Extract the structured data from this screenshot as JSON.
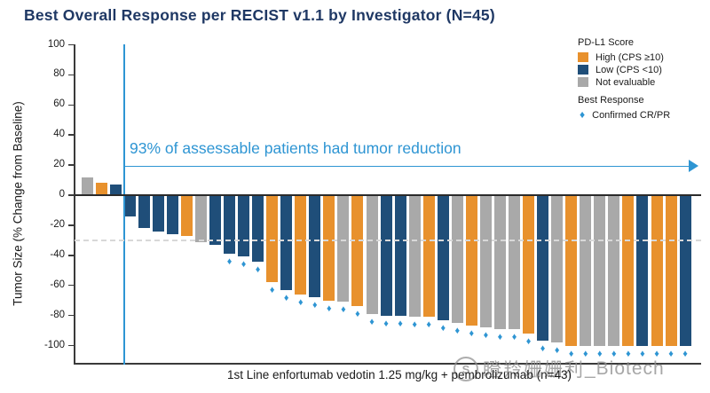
{
  "title": "Best Overall Response per RECIST v1.1 by Investigator (N=45)",
  "colors": {
    "title_navy": "#1F3864",
    "orange": "#E8912D",
    "navy": "#1F4E79",
    "gray": "#A9A9A9",
    "accent_blue": "#2E95D3",
    "axis": "#3a3a3a",
    "zero_line": "#2b2b2b",
    "dashed_line": "#D8D8D8",
    "watermark_gray": "#919191"
  },
  "watermark": {
    "badge_text": "S",
    "cjk_left": "瞪羚",
    "cjk_right": "姗姗利",
    "suffix": "_Biotech"
  },
  "chart_data": {
    "type": "bar",
    "title": "Best Overall Response per RECIST v1.1 by Investigator (N=45)",
    "xlabel": "1st Line enfortumab vedotin 1.25 mg/kg + pembrolizumab (n=43)",
    "ylabel": "Tumor Size (% Change from Baseline)",
    "ylim": [
      -100,
      100
    ],
    "yticks": [
      100,
      80,
      60,
      40,
      20,
      0,
      -20,
      -40,
      -60,
      -80,
      -100
    ],
    "grid": false,
    "legend_position": "top-right",
    "reference_lines": [
      {
        "y": 0,
        "style": "solid"
      },
      {
        "y": -30,
        "style": "dashed"
      }
    ],
    "annotation": {
      "text": "93% of assessable patients had tumor reduction"
    },
    "legend": {
      "pdl1_title": "PD-L1 Score",
      "items": [
        {
          "key": "high",
          "label": "High (CPS ≥10)"
        },
        {
          "key": "low",
          "label": "Low (CPS <10)"
        },
        {
          "key": "ne",
          "label": "Not evaluable"
        }
      ],
      "response_title": "Best Response",
      "response_item": "Confirmed CR/PR"
    },
    "bars": {
      "values": [
        12,
        8,
        7,
        -14,
        -22,
        -24,
        -26,
        -27,
        -31,
        -33,
        -39,
        -41,
        -44,
        -58,
        -63,
        -66,
        -68,
        -70,
        -71,
        -74,
        -79,
        -80,
        -80,
        -81,
        -81,
        -83,
        -85,
        -87,
        -88,
        -89,
        -89,
        -92,
        -97,
        -98,
        -100,
        -100,
        -100,
        -100,
        -100,
        -100,
        -100,
        -100,
        -100
      ],
      "pdl1": [
        "ne",
        "high",
        "low",
        "low",
        "low",
        "low",
        "low",
        "high",
        "ne",
        "low",
        "low",
        "low",
        "low",
        "high",
        "low",
        "high",
        "low",
        "high",
        "ne",
        "high",
        "ne",
        "low",
        "low",
        "ne",
        "high",
        "low",
        "ne",
        "high",
        "ne",
        "ne",
        "ne",
        "high",
        "low",
        "ne",
        "high",
        "ne",
        "ne",
        "ne",
        "high",
        "low",
        "high",
        "high",
        "low"
      ],
      "confirmed_cr_pr": [
        false,
        false,
        false,
        false,
        false,
        false,
        false,
        false,
        false,
        false,
        true,
        true,
        true,
        true,
        true,
        true,
        true,
        true,
        true,
        true,
        true,
        true,
        true,
        true,
        true,
        true,
        true,
        true,
        true,
        true,
        true,
        true,
        true,
        true,
        true,
        true,
        true,
        true,
        true,
        true,
        true,
        true,
        true
      ]
    }
  }
}
